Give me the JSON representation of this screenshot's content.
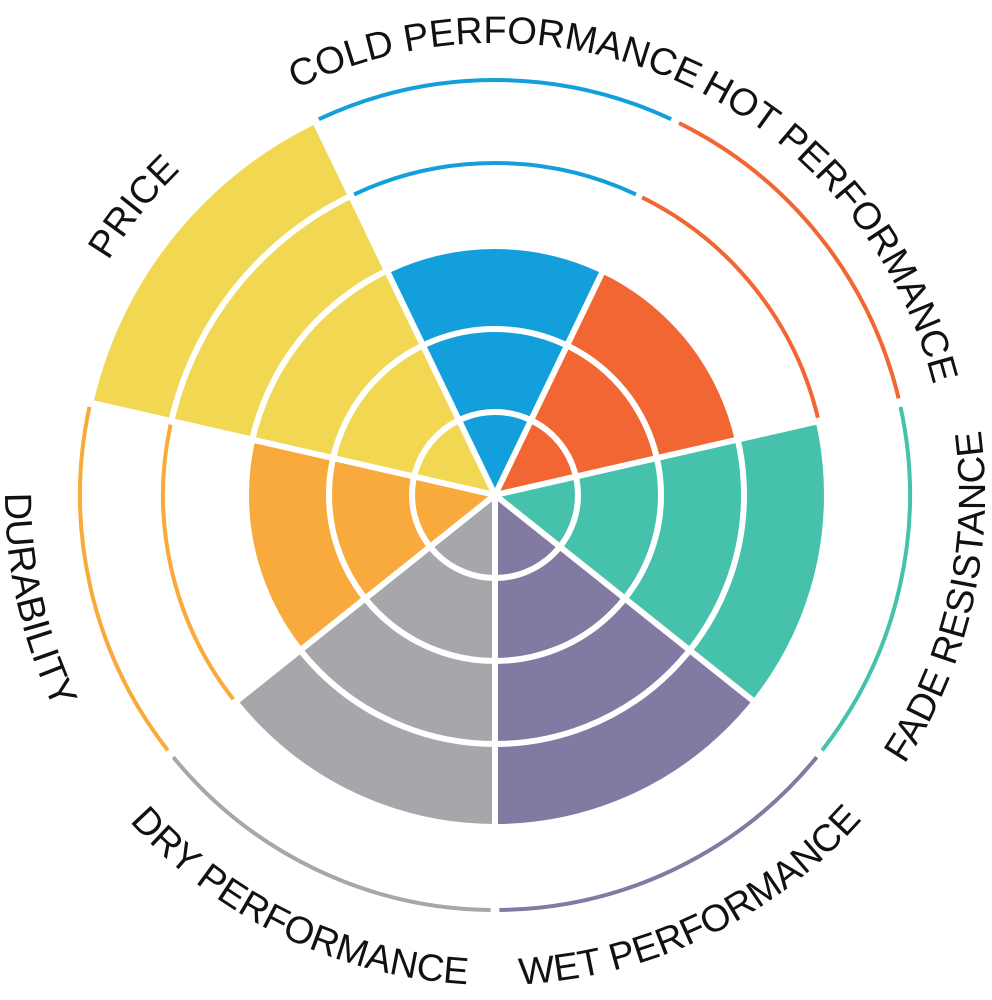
{
  "chart_data": {
    "type": "polar-area",
    "categories": [
      "COLD PERFORMANCE",
      "HOT PERFORMANCE",
      "FADE RESISTANCE",
      "WET PERFORMANCE",
      "DRY PERFORMANCE",
      "DURABILITY",
      "PRICE"
    ],
    "values": [
      3,
      3,
      4,
      4,
      4,
      3,
      5
    ],
    "colors": [
      "#139fdb",
      "#f26633",
      "#45c1ac",
      "#837aa3",
      "#a6a7ab",
      "#f9aa3c",
      "#f2d852"
    ],
    "rlim": [
      0,
      5
    ],
    "rticks": [
      1,
      2,
      3,
      4,
      5
    ]
  }
}
